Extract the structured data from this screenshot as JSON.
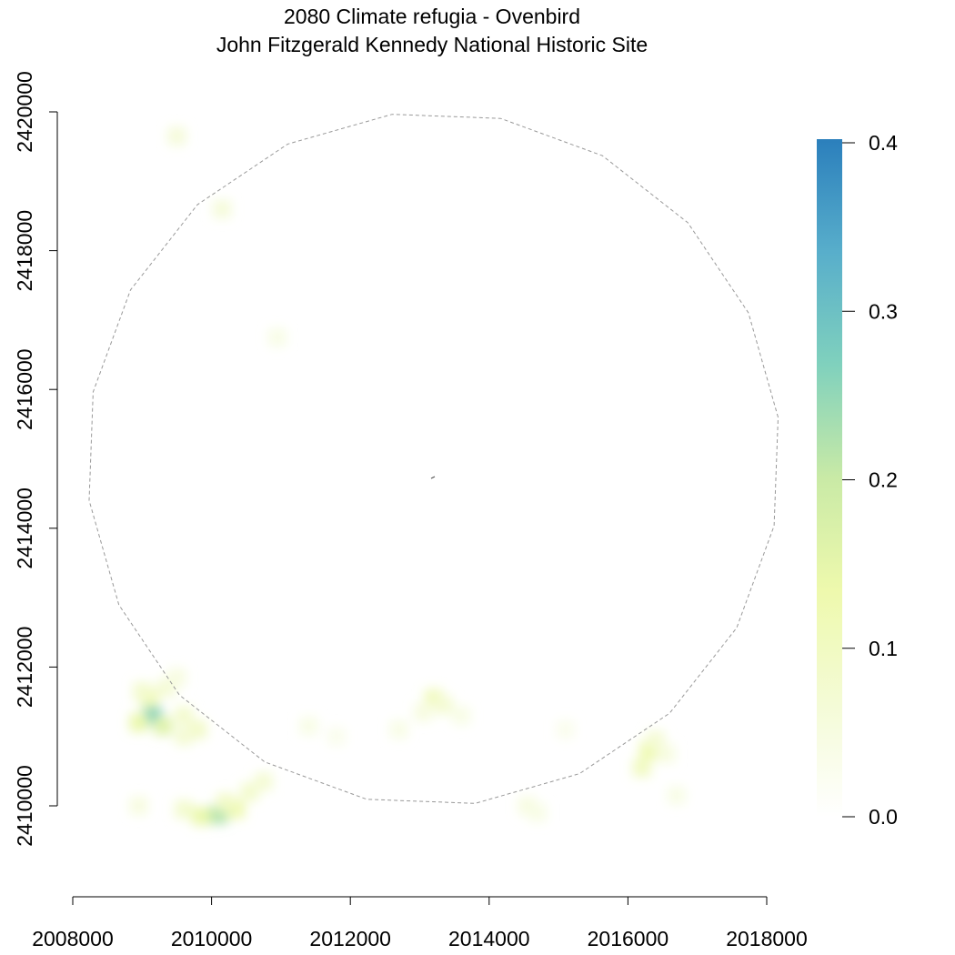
{
  "chart_data": {
    "type": "heatmap",
    "title": "2080 Climate refugia - Ovenbird",
    "subtitle": "John Fitzgerald Kennedy National Historic Site",
    "xlabel": "",
    "ylabel": "",
    "xlim": [
      2008000,
      2018000
    ],
    "ylim": [
      2410000,
      2420000
    ],
    "x_ticks": [
      2008000,
      2010000,
      2012000,
      2014000,
      2016000,
      2018000
    ],
    "x_tick_labels": [
      "2008000",
      "2010000",
      "2012000",
      "2014000",
      "2016000",
      "2018000"
    ],
    "y_ticks": [
      2410000,
      2412000,
      2414000,
      2416000,
      2418000,
      2420000
    ],
    "y_tick_labels": [
      "2410000",
      "2412000",
      "2414000",
      "2416000",
      "2418000",
      "2420000"
    ],
    "grid": false,
    "legend": {
      "placement": "right",
      "range": [
        0,
        0.4
      ],
      "ticks": [
        0.0,
        0.1,
        0.2,
        0.3,
        0.4
      ],
      "tick_labels": [
        "0.0",
        "0.1",
        "0.2",
        "0.3",
        "0.4"
      ],
      "colors": [
        "#ffffff",
        "#f4fbd6",
        "#eef9ad",
        "#c9eaa6",
        "#80d1bd",
        "#58aecb",
        "#2b7fbc"
      ]
    },
    "boundary_circle": {
      "center": [
        2013200,
        2415000
      ],
      "radius": 5000,
      "style": "dashed",
      "color": "#999999"
    },
    "cells": [
      {
        "x": 2009150,
        "y": 2411300,
        "value": 0.27
      },
      {
        "x": 2009300,
        "y": 2411150,
        "value": 0.16
      },
      {
        "x": 2008950,
        "y": 2411200,
        "value": 0.14
      },
      {
        "x": 2009100,
        "y": 2411550,
        "value": 0.12
      },
      {
        "x": 2009000,
        "y": 2411650,
        "value": 0.08
      },
      {
        "x": 2009350,
        "y": 2411700,
        "value": 0.07
      },
      {
        "x": 2009600,
        "y": 2411300,
        "value": 0.08
      },
      {
        "x": 2009800,
        "y": 2411100,
        "value": 0.09
      },
      {
        "x": 2009600,
        "y": 2411000,
        "value": 0.07
      },
      {
        "x": 2009500,
        "y": 2411850,
        "value": 0.05
      },
      {
        "x": 2010100,
        "y": 2409870,
        "value": 0.22
      },
      {
        "x": 2009850,
        "y": 2409850,
        "value": 0.14
      },
      {
        "x": 2010350,
        "y": 2409950,
        "value": 0.13
      },
      {
        "x": 2009600,
        "y": 2409950,
        "value": 0.08
      },
      {
        "x": 2010550,
        "y": 2410200,
        "value": 0.08
      },
      {
        "x": 2010750,
        "y": 2410350,
        "value": 0.07
      },
      {
        "x": 2010200,
        "y": 2410050,
        "value": 0.09
      },
      {
        "x": 2008950,
        "y": 2410000,
        "value": 0.05
      },
      {
        "x": 2016300,
        "y": 2410800,
        "value": 0.13
      },
      {
        "x": 2016200,
        "y": 2410550,
        "value": 0.1
      },
      {
        "x": 2016400,
        "y": 2410950,
        "value": 0.07
      },
      {
        "x": 2016550,
        "y": 2410750,
        "value": 0.05
      },
      {
        "x": 2016700,
        "y": 2410150,
        "value": 0.04
      },
      {
        "x": 2013200,
        "y": 2411550,
        "value": 0.11
      },
      {
        "x": 2013350,
        "y": 2411450,
        "value": 0.07
      },
      {
        "x": 2013050,
        "y": 2411350,
        "value": 0.05
      },
      {
        "x": 2013600,
        "y": 2411300,
        "value": 0.04
      },
      {
        "x": 2012700,
        "y": 2411100,
        "value": 0.04
      },
      {
        "x": 2014550,
        "y": 2410000,
        "value": 0.05
      },
      {
        "x": 2014700,
        "y": 2409900,
        "value": 0.04
      },
      {
        "x": 2009500,
        "y": 2419650,
        "value": 0.06
      },
      {
        "x": 2010150,
        "y": 2418600,
        "value": 0.06
      },
      {
        "x": 2010950,
        "y": 2416750,
        "value": 0.04
      },
      {
        "x": 2011400,
        "y": 2411150,
        "value": 0.04
      },
      {
        "x": 2011800,
        "y": 2411000,
        "value": 0.03
      },
      {
        "x": 2015100,
        "y": 2411100,
        "value": 0.03
      }
    ]
  }
}
